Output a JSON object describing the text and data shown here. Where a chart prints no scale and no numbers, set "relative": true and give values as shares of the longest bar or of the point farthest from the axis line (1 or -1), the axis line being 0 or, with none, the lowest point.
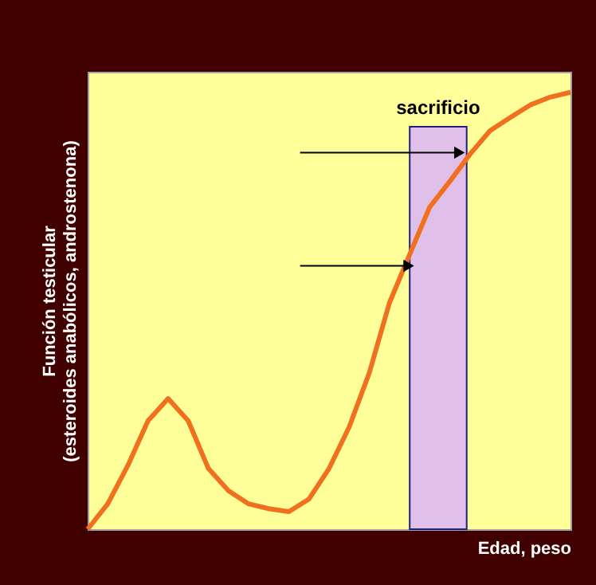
{
  "chart_data": {
    "type": "line",
    "relative": true,
    "xlabel": "Edad, peso",
    "ylabel": "Función testicular\n(esteroides anabólicos, androstenona)",
    "tick_labels": false,
    "categories": [
      null,
      null,
      null,
      null,
      null,
      null,
      null,
      null,
      null,
      null,
      null,
      null,
      null,
      null,
      null,
      null,
      null,
      null,
      null,
      null,
      null,
      null,
      null,
      null,
      null
    ],
    "series": [
      {
        "color": "#f07020",
        "values": [
          0,
          0.058,
          0.146,
          0.248,
          0.299,
          0.248,
          0.139,
          0.088,
          0.058,
          0.047,
          0.04,
          0.069,
          0.139,
          0.234,
          0.358,
          0.518,
          0.628,
          0.737,
          0.796,
          0.858,
          0.912,
          0.942,
          0.971,
          0.989,
          1
        ]
      }
    ],
    "annotations": [
      "sacrificio"
    ]
  }
}
